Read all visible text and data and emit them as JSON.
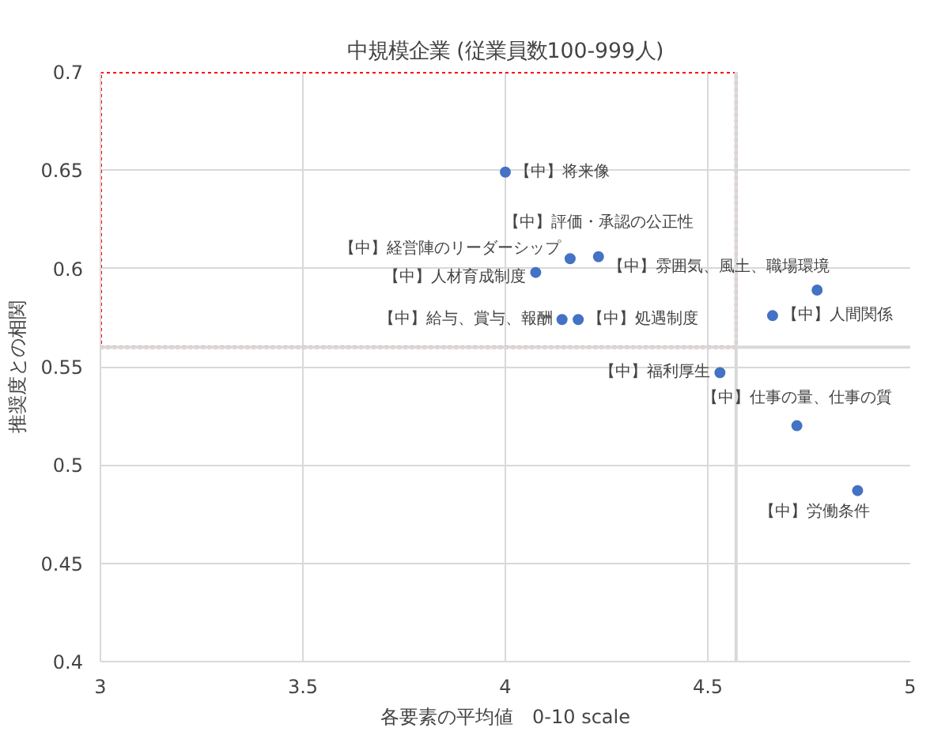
{
  "chart_data": {
    "type": "scatter",
    "title": "中規模企業 (従業員数100-999人)",
    "xlabel": "各要素の平均値　0-10 scale",
    "ylabel": "推奨度との相関",
    "series": [
      {
        "color": "#4472c4",
        "x": [
          4.0,
          4.23,
          4.16,
          4.075,
          4.14,
          4.18,
          4.77,
          4.66,
          4.53,
          4.72,
          4.87
        ],
        "values": [
          0.649,
          0.606,
          0.605,
          0.598,
          0.574,
          0.574,
          0.589,
          0.576,
          0.547,
          0.52,
          0.487
        ]
      }
    ],
    "annotations": [
      {
        "text": "【中】将来像",
        "x": 4.0,
        "y": 0.649
      },
      {
        "text": "【中】評価・承認の公正性",
        "x": 4.23,
        "y": 0.606
      },
      {
        "text": "【中】経営陣のリーダーシップ",
        "x": 4.16,
        "y": 0.605
      },
      {
        "text": "【中】人材育成制度",
        "x": 4.075,
        "y": 0.598
      },
      {
        "text": "【中】給与、賞与、報酬",
        "x": 4.14,
        "y": 0.574
      },
      {
        "text": "【中】処遇制度",
        "x": 4.18,
        "y": 0.574
      },
      {
        "text": "【中】雰囲気、風土、職場環境",
        "x": 4.77,
        "y": 0.589
      },
      {
        "text": "【中】人間関係",
        "x": 4.66,
        "y": 0.576
      },
      {
        "text": "【中】福利厚生",
        "x": 4.53,
        "y": 0.547
      },
      {
        "text": "【中】仕事の量、仕事の質",
        "x": 4.72,
        "y": 0.52
      },
      {
        "text": "【中】労働条件",
        "x": 4.87,
        "y": 0.487
      }
    ],
    "ref_lines": [
      {
        "axis": "x",
        "value": 4.57,
        "color": "#d9d9d9"
      },
      {
        "axis": "y",
        "value": 0.56,
        "color": "#d9d9d9"
      }
    ],
    "xlim": [
      3,
      5
    ],
    "xticks": [
      3,
      3.5,
      4,
      4.5,
      5
    ],
    "ylim": [
      0.4,
      0.7
    ],
    "yticks": [
      0.4,
      0.45,
      0.5,
      0.55,
      0.6,
      0.65,
      0.7
    ],
    "grid": true,
    "marker": "circle"
  }
}
